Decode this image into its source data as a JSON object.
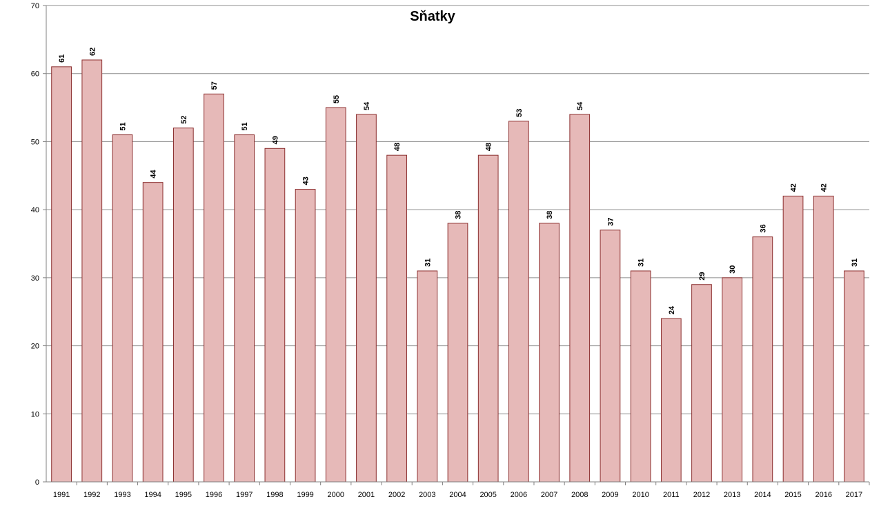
{
  "chart_data": {
    "type": "bar",
    "title": "Sňatky",
    "xlabel": "",
    "ylabel": "",
    "categories": [
      "1991",
      "1992",
      "1993",
      "1994",
      "1995",
      "1996",
      "1997",
      "1998",
      "1999",
      "2000",
      "2001",
      "2002",
      "2003",
      "2004",
      "2005",
      "2006",
      "2007",
      "2008",
      "2009",
      "2010",
      "2011",
      "2012",
      "2013",
      "2014",
      "2015",
      "2016",
      "2017"
    ],
    "values": [
      61,
      62,
      51,
      44,
      52,
      57,
      51,
      49,
      43,
      55,
      54,
      48,
      31,
      38,
      48,
      53,
      38,
      54,
      37,
      31,
      24,
      29,
      30,
      36,
      42,
      42,
      31
    ],
    "ylim": [
      0,
      70
    ],
    "yticks": [
      0,
      10,
      20,
      30,
      40,
      50,
      60,
      70
    ],
    "grid": true,
    "data_labels": true,
    "legend": "none",
    "colors": {
      "bar_fill": "#e6b9b8",
      "bar_stroke": "#8b2e2e"
    }
  }
}
